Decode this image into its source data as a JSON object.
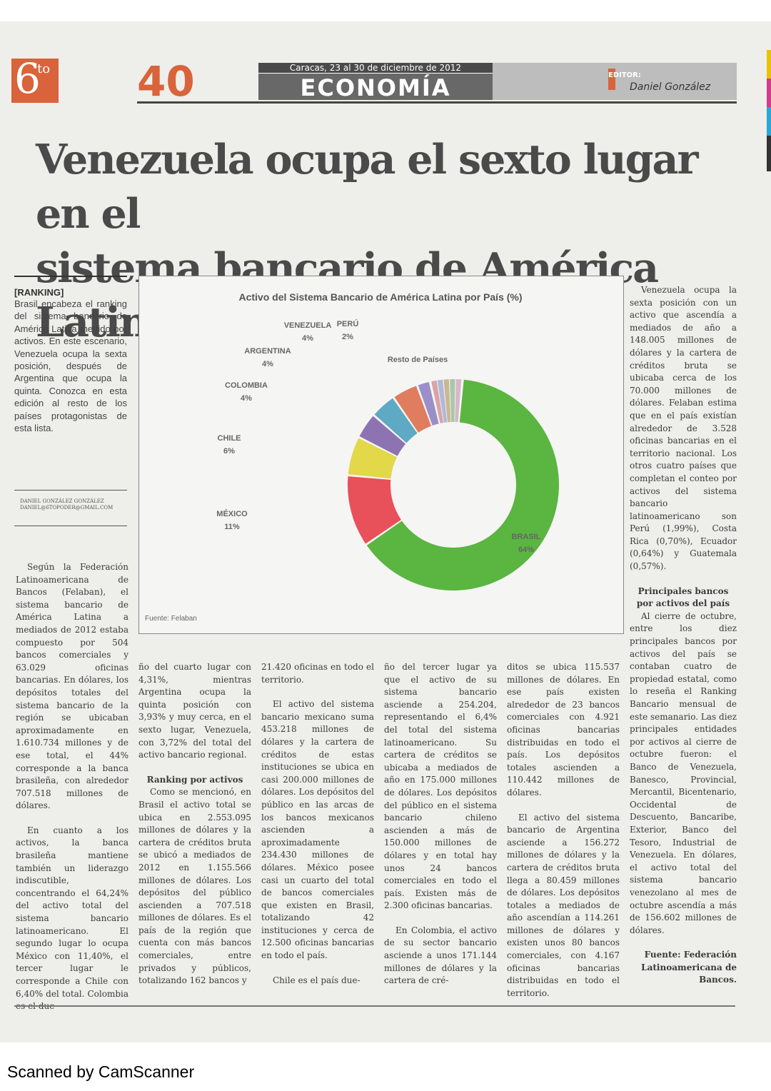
{
  "header": {
    "logo_number": "6",
    "logo_suffix": "to",
    "page_number": "40",
    "date": "Caracas, 23 al 30 de diciembre de 2012",
    "section": "ECONOMÍA",
    "editor_label": "EDITOR:",
    "editor_name": "Daniel González"
  },
  "article": {
    "headline_line1": "Venezuela ocupa el sexto lugar en el",
    "headline_line2": "sistema bancario de América Latina"
  },
  "sidebar": {
    "tag": "[RANKING]",
    "blurb": "Brasil encabeza el ranking del sistema bancario de América Latina medido por activos. En este escenario, Venezuela ocupa la sexta posición, después de Argentina que ocupa la quinta. Conozca en esta edición al resto de los países protagonistas de esta lista.",
    "byline_name": "DANIEL GONZÁLEZ GONZÁLEZ",
    "byline_email": "DANIEL@6TOPODER@GMAIL.COM"
  },
  "chart_data": {
    "type": "pie",
    "title": "Activo del Sistema Bancario de América Latina por País (%)",
    "source": "Fuente: Felaban",
    "slices": [
      {
        "label": "BRASIL",
        "value": 64,
        "value_label": "64%",
        "color": "#5ab541"
      },
      {
        "label": "MÉXICO",
        "value": 11,
        "value_label": "11%",
        "color": "#e8505a"
      },
      {
        "label": "CHILE",
        "value": 6,
        "value_label": "6%",
        "color": "#e2d84a"
      },
      {
        "label": "COLOMBIA",
        "value": 4,
        "value_label": "4%",
        "color": "#8e73b3"
      },
      {
        "label": "ARGENTINA",
        "value": 4,
        "value_label": "4%",
        "color": "#5ea9c3"
      },
      {
        "label": "VENEZUELA",
        "value": 4,
        "value_label": "4%",
        "color": "#df7d5e"
      },
      {
        "label": "PERÚ",
        "value": 2,
        "value_label": "2%",
        "color": "#9a8fc9"
      },
      {
        "label": "Resto de Países",
        "value": 5,
        "value_label": "",
        "color": "#c9b8b0"
      }
    ],
    "resto_colors": [
      "#d9a3a8",
      "#b1b9d9",
      "#cbb793",
      "#a9c8a9",
      "#d8b7c8"
    ]
  },
  "col_right": {
    "p1": "Venezuela ocupa la sexta posición con un activo que ascendía a mediados de año a 148.005 millones de dólares y la cartera de créditos bruta se ubicaba cerca de los 70.000 millones de dólares. Felaban estima que en el país existían alrededor de 3.528 oficinas bancarias en el territorio nacional. Los otros cuatro países que completan el conteo por activos del sistema bancario latinoamericano son Perú (1,99%), Costa Rica (0,70%), Ecuador (0,64%) y Guatemala (0,57%).",
    "subhead": "Principales bancos por activos del país",
    "p2": "Al cierre de octubre, entre los diez principales bancos por activos del país se contaban cuatro de propiedad estatal, como lo reseña el Ranking Bancario mensual de este semanario. Las diez principales entidades por activos al cierre de octubre fueron: el Banco de Venezuela, Banesco, Provincial, Mercantil, Bicentenario, Occidental de Descuento, Bancaribe, Exterior, Banco del Tesoro, Industrial de Venezuela. En dólares, el activo total del sistema bancario venezolano al mes de octubre ascendía a más de 156.602 millones de dólares.",
    "source": "Fuente: Federación Latinoamericana de Bancos."
  },
  "col1": {
    "p1": "Según la Federación Latinoamericana de Bancos (Felaban), el sistema bancario de América Latina a mediados de 2012 estaba compuesto por 504 bancos comerciales y 63.029 oficinas bancarias. En dólares, los depósitos totales del sistema bancario de la región se ubicaban aproximadamente en 1.610.734 millones y de ese total, el 44% corresponde a la banca brasileña, con alrededor 707.518 millones de dólares.",
    "p2": "En cuanto a los activos, la banca brasileña mantiene también un liderazgo indiscutible, concentrando el 64,24% del activo total del sistema bancario latinoamericano. El segundo lugar lo ocupa México con 11,40%, el tercer lugar le corresponde a Chile con 6,40% del total. Colombia es el due-"
  },
  "col2": {
    "p1": "ño del cuarto lugar con 4,31%, mientras Argentina ocupa la quinta posición con 3,93% y muy cerca, en el sexto lugar, Venezuela, con 3,72% del total del activo bancario regional.",
    "subhead": "Ranking por activos",
    "p2": "Como se mencionó, en Brasil el activo total se ubica en 2.553.095 millones de dólares y la cartera de créditos bruta se ubicó a mediados de 2012 en 1.155.566 millones de dólares. Los depósitos del público ascienden a 707.518 millones de dólares. Es el país de la región que cuenta con más bancos comerciales, entre privados y públicos, totalizando 162 bancos y"
  },
  "col3": {
    "p1": "21.420 oficinas en todo el territorio.",
    "p2": "El activo del sistema bancario mexicano suma 453.218 millones de dólares y la cartera de créditos de estas instituciones se ubica en casi 200.000 millones de dólares. Los depósitos del público en las arcas de los bancos mexicanos ascienden a aproximadamente 234.430 millones de dólares. México posee casi un cuarto del total de bancos comerciales que existen en Brasil, totalizando 42 instituciones y cerca de 12.500 oficinas bancarias en todo el país.",
    "p3": "Chile es el país due-"
  },
  "col4": {
    "p1": "ño del tercer lugar ya que el activo de su sistema bancario asciende a 254.204, representando el 6,4% del total del sistema latinoamericano. Su cartera de créditos se ubicaba a mediados de año en 175.000 millones de dólares. Los depósitos del público en el sistema bancario chileno ascienden a más de 150.000 millones de dólares y en total hay unos 24 bancos comerciales en todo el país. Existen más de 2.300 oficinas bancarias.",
    "p2": "En Colombia, el activo de su sector bancario asciende a unos 171.144 millones de dólares y la cartera de cré-"
  },
  "col5": {
    "p1": "ditos se ubica 115.537 millones de dólares. En ese país existen alrededor de 23 bancos comerciales con 4.921 oficinas bancarias distribuidas en todo el país. Los depósitos totales ascienden a 110.442 millones de dólares.",
    "p2": "El activo del sistema bancario de Argentina asciende a 156.272 millones de dólares y la cartera de créditos bruta llega a 80.459 millones de dólares. Los depósitos totales a mediados de año ascendían a 114.261 millones de dólares y existen unos 80 bancos comerciales, con 4.167 oficinas bancarias distribuidas en todo el territorio."
  },
  "footer": {
    "scanner": "Scanned by CamScanner"
  }
}
